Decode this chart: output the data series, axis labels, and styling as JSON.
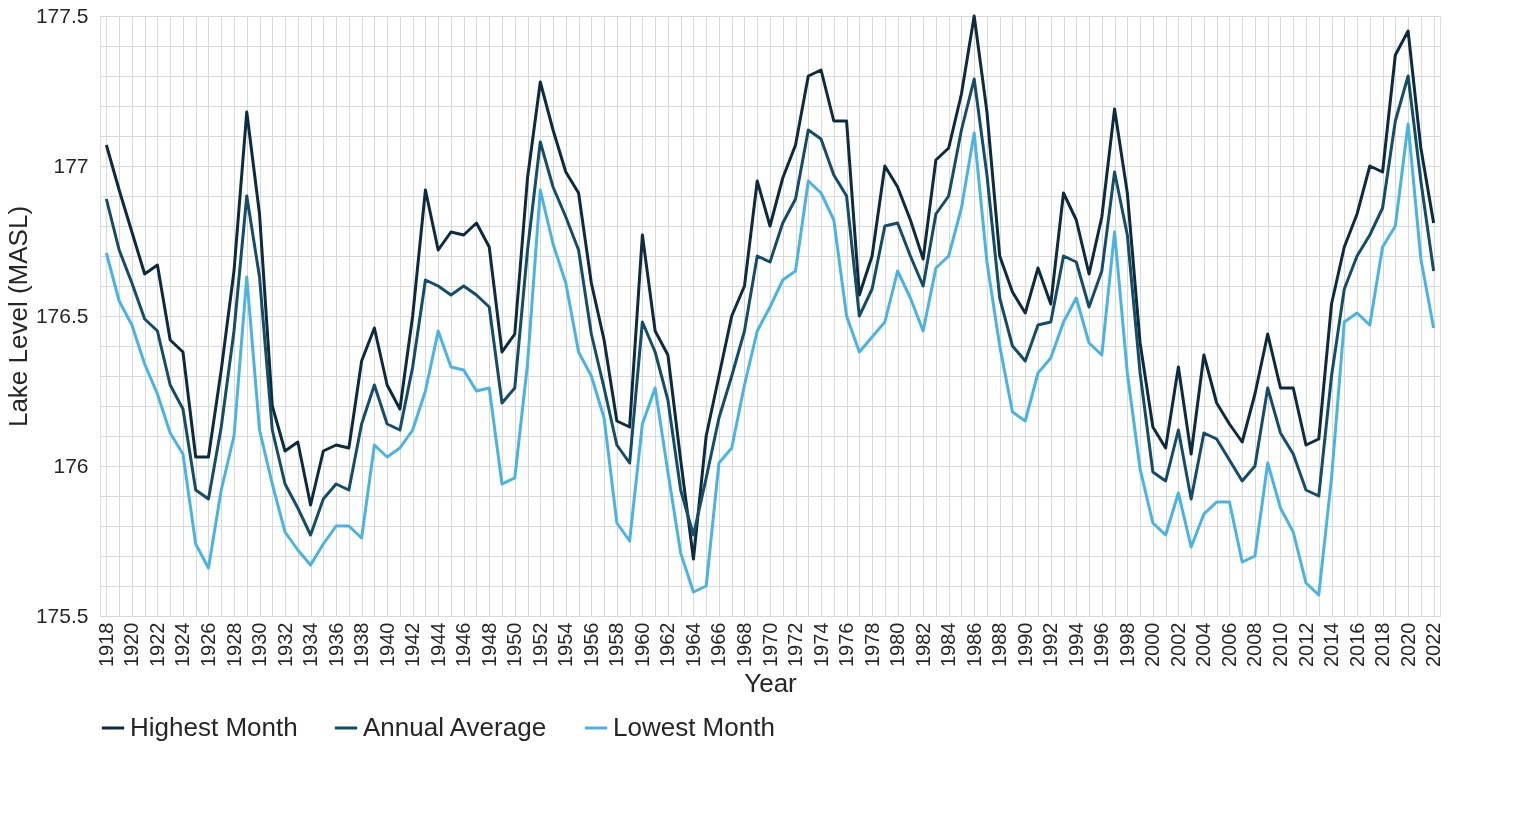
{
  "chart_data": {
    "type": "line",
    "xlabel": "Year",
    "ylabel": "Lake Level (MASL)",
    "x": [
      1918,
      1919,
      1920,
      1921,
      1922,
      1923,
      1924,
      1925,
      1926,
      1927,
      1928,
      1929,
      1930,
      1931,
      1932,
      1933,
      1934,
      1935,
      1936,
      1937,
      1938,
      1939,
      1940,
      1941,
      1942,
      1943,
      1944,
      1945,
      1946,
      1947,
      1948,
      1949,
      1950,
      1951,
      1952,
      1953,
      1954,
      1955,
      1956,
      1957,
      1958,
      1959,
      1960,
      1961,
      1962,
      1963,
      1964,
      1965,
      1966,
      1967,
      1968,
      1969,
      1970,
      1971,
      1972,
      1973,
      1974,
      1975,
      1976,
      1977,
      1978,
      1979,
      1980,
      1981,
      1982,
      1983,
      1984,
      1985,
      1986,
      1987,
      1988,
      1989,
      1990,
      1991,
      1992,
      1993,
      1994,
      1995,
      1996,
      1997,
      1998,
      1999,
      2000,
      2001,
      2002,
      2003,
      2004,
      2005,
      2006,
      2007,
      2008,
      2009,
      2010,
      2011,
      2012,
      2013,
      2014,
      2015,
      2016,
      2017,
      2018,
      2019,
      2020,
      2021,
      2022
    ],
    "series": [
      {
        "name": "Highest Month",
        "color": "#0d2b3e",
        "values": [
          177.07,
          176.92,
          176.78,
          176.64,
          176.67,
          176.42,
          176.38,
          176.03,
          176.03,
          176.32,
          176.65,
          177.18,
          176.84,
          176.2,
          176.05,
          176.08,
          175.87,
          176.05,
          176.07,
          176.06,
          176.35,
          176.46,
          176.27,
          176.19,
          176.5,
          176.92,
          176.72,
          176.78,
          176.77,
          176.81,
          176.73,
          176.38,
          176.44,
          176.96,
          177.28,
          177.12,
          176.98,
          176.91,
          176.61,
          176.42,
          176.15,
          176.13,
          176.77,
          176.45,
          176.37,
          176.02,
          175.69,
          176.1,
          176.3,
          176.5,
          176.6,
          176.95,
          176.8,
          176.96,
          177.07,
          177.3,
          177.32,
          177.15,
          177.15,
          176.57,
          176.7,
          177.0,
          176.93,
          176.82,
          176.69,
          177.02,
          177.06,
          177.24,
          177.5,
          177.18,
          176.7,
          176.58,
          176.51,
          176.66,
          176.54,
          176.91,
          176.82,
          176.64,
          176.83,
          177.19,
          176.91,
          176.41,
          176.13,
          176.06,
          176.33,
          176.04,
          176.37,
          176.21,
          176.14,
          176.08,
          176.24,
          176.44,
          176.26,
          176.26,
          176.07,
          176.09,
          176.54,
          176.73,
          176.84,
          177.0,
          176.98,
          177.37,
          177.45,
          177.06,
          176.81
        ]
      },
      {
        "name": "Annual Average",
        "color": "#134d68",
        "values": [
          176.89,
          176.72,
          176.61,
          176.49,
          176.45,
          176.27,
          176.19,
          175.92,
          175.89,
          176.13,
          176.45,
          176.9,
          176.63,
          176.12,
          175.94,
          175.86,
          175.77,
          175.89,
          175.94,
          175.92,
          176.14,
          176.27,
          176.14,
          176.12,
          176.33,
          176.62,
          176.6,
          176.57,
          176.6,
          176.57,
          176.53,
          176.21,
          176.26,
          176.72,
          177.08,
          176.93,
          176.83,
          176.72,
          176.44,
          176.26,
          176.07,
          176.01,
          176.48,
          176.38,
          176.22,
          175.92,
          175.77,
          175.96,
          176.16,
          176.3,
          176.45,
          176.7,
          176.68,
          176.81,
          176.89,
          177.12,
          177.09,
          176.97,
          176.9,
          176.5,
          176.59,
          176.8,
          176.81,
          176.7,
          176.6,
          176.84,
          176.9,
          177.12,
          177.29,
          176.97,
          176.56,
          176.4,
          176.35,
          176.47,
          176.48,
          176.7,
          176.68,
          176.53,
          176.65,
          176.98,
          176.77,
          176.31,
          175.98,
          175.95,
          176.12,
          175.89,
          176.11,
          176.09,
          176.02,
          175.95,
          176.0,
          176.26,
          176.11,
          176.04,
          175.92,
          175.9,
          176.3,
          176.59,
          176.7,
          176.77,
          176.86,
          177.15,
          177.3,
          176.95,
          176.65
        ]
      },
      {
        "name": "Lowest Month",
        "color": "#4ab3e2",
        "values": [
          176.71,
          176.55,
          176.47,
          176.34,
          176.24,
          176.11,
          176.04,
          175.74,
          175.66,
          175.92,
          176.1,
          176.63,
          176.12,
          175.94,
          175.78,
          175.72,
          175.67,
          175.74,
          175.8,
          175.8,
          175.76,
          176.07,
          176.03,
          176.06,
          176.12,
          176.25,
          176.45,
          176.33,
          176.32,
          176.25,
          176.26,
          175.94,
          175.96,
          176.34,
          176.92,
          176.74,
          176.61,
          176.38,
          176.3,
          176.16,
          175.81,
          175.75,
          176.14,
          176.26,
          175.98,
          175.71,
          175.58,
          175.6,
          176.01,
          176.06,
          176.27,
          176.45,
          176.53,
          176.62,
          176.65,
          176.95,
          176.91,
          176.82,
          176.5,
          176.38,
          176.43,
          176.48,
          176.65,
          176.56,
          176.45,
          176.66,
          176.7,
          176.86,
          177.11,
          176.68,
          176.4,
          176.18,
          176.15,
          176.31,
          176.36,
          176.48,
          176.56,
          176.41,
          176.37,
          176.78,
          176.31,
          175.99,
          175.81,
          175.77,
          175.91,
          175.73,
          175.84,
          175.88,
          175.88,
          175.68,
          175.7,
          176.01,
          175.86,
          175.78,
          175.61,
          175.57,
          175.96,
          176.48,
          176.51,
          176.47,
          176.73,
          176.8,
          177.14,
          176.69,
          176.46
        ]
      }
    ],
    "xlim": [
      1917.5,
      2022.5
    ],
    "xticks": [
      1918,
      {
        "value": 1919,
        "label": null
      },
      1920,
      {
        "value": 1921,
        "label": null
      },
      1922,
      {
        "value": 1923,
        "label": null
      },
      1924,
      {
        "value": 1925,
        "label": null
      },
      1926,
      {
        "value": 1927,
        "label": null
      },
      1928,
      {
        "value": 1929,
        "label": null
      },
      1930,
      {
        "value": 1931,
        "label": null
      },
      1932,
      {
        "value": 1933,
        "label": null
      },
      1934,
      {
        "value": 1935,
        "label": null
      },
      1936,
      {
        "value": 1937,
        "label": null
      },
      1938,
      {
        "value": 1939,
        "label": null
      },
      1940,
      {
        "value": 1941,
        "label": null
      },
      1942,
      {
        "value": 1943,
        "label": null
      },
      1944,
      {
        "value": 1945,
        "label": null
      },
      1946,
      {
        "value": 1947,
        "label": null
      },
      1948,
      {
        "value": 1949,
        "label": null
      },
      1950,
      {
        "value": 1951,
        "label": null
      },
      1952,
      {
        "value": 1953,
        "label": null
      },
      1954,
      {
        "value": 1955,
        "label": null
      },
      1956,
      {
        "value": 1957,
        "label": null
      },
      1958,
      {
        "value": 1959,
        "label": null
      },
      1960,
      {
        "value": 1961,
        "label": null
      },
      1962,
      {
        "value": 1963,
        "label": null
      },
      1964,
      {
        "value": 1965,
        "label": null
      },
      1966,
      {
        "value": 1967,
        "label": null
      },
      1968,
      {
        "value": 1969,
        "label": null
      },
      1970,
      {
        "value": 1971,
        "label": null
      },
      1972,
      {
        "value": 1973,
        "label": null
      },
      1974,
      {
        "value": 1975,
        "label": null
      },
      1976,
      {
        "value": 1977,
        "label": null
      },
      1978,
      {
        "value": 1979,
        "label": null
      },
      1980,
      {
        "value": 1981,
        "label": null
      },
      1982,
      {
        "value": 1983,
        "label": null
      },
      1984,
      {
        "value": 1985,
        "label": null
      },
      1986,
      {
        "value": 1987,
        "label": null
      },
      1988,
      {
        "value": 1989,
        "label": null
      },
      1990,
      {
        "value": 1991,
        "label": null
      },
      1992,
      {
        "value": 1993,
        "label": null
      },
      1994,
      {
        "value": 1995,
        "label": null
      },
      1996,
      {
        "value": 1997,
        "label": null
      },
      1998,
      {
        "value": 1999,
        "label": null
      },
      2000,
      {
        "value": 2001,
        "label": null
      },
      2002,
      {
        "value": 2003,
        "label": null
      },
      2004,
      {
        "value": 2005,
        "label": null
      },
      2006,
      {
        "value": 2007,
        "label": null
      },
      2008,
      {
        "value": 2009,
        "label": null
      },
      2010,
      {
        "value": 2011,
        "label": null
      },
      2012,
      {
        "value": 2013,
        "label": null
      },
      2014,
      {
        "value": 2015,
        "label": null
      },
      2016,
      {
        "value": 2017,
        "label": null
      },
      2018,
      {
        "value": 2019,
        "label": null
      },
      2020,
      {
        "value": 2021,
        "label": null
      },
      2022
    ],
    "ylim": [
      175.5,
      177.5
    ],
    "yticks": [
      175.5,
      {
        "value": 175.6,
        "label": null
      },
      {
        "value": 175.7,
        "label": null
      },
      {
        "value": 175.8,
        "label": null
      },
      {
        "value": 175.9,
        "label": null
      },
      176,
      {
        "value": 176.1,
        "label": null
      },
      {
        "value": 176.2,
        "label": null
      },
      {
        "value": 176.3,
        "label": null
      },
      {
        "value": 176.4,
        "label": null
      },
      176.5,
      {
        "value": 176.6,
        "label": null
      },
      {
        "value": 176.7,
        "label": null
      },
      {
        "value": 176.8,
        "label": null
      },
      {
        "value": 176.9,
        "label": null
      },
      177,
      {
        "value": 177.1,
        "label": null
      },
      {
        "value": 177.2,
        "label": null
      },
      {
        "value": 177.3,
        "label": null
      },
      {
        "value": 177.4,
        "label": null
      },
      177.5
    ],
    "grid": true,
    "legend": "bottom",
    "marker": "none",
    "line_style": "solid"
  }
}
